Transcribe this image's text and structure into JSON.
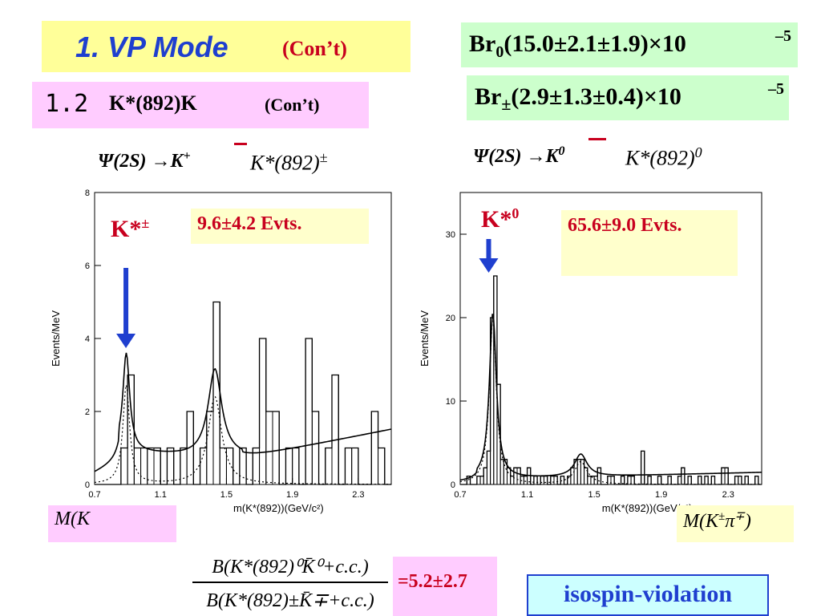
{
  "title": {
    "main": "1. VP Mode",
    "con": "(Con’t)"
  },
  "subtitle": {
    "number": "1.2",
    "text": "K*(892)K",
    "con": "(Con’t)"
  },
  "branching": {
    "br0": {
      "label": "Br",
      "sub": "0",
      "value": "(15.0±2.1±1.9)×10",
      "exp": "–5"
    },
    "brpm": {
      "label": "Br",
      "sub": "±",
      "value": "(2.9±1.3±0.4)×10",
      "exp": "–5"
    }
  },
  "left_panel": {
    "decay": "Ψ(2S) →K",
    "decay_sup": "+",
    "kstar": "K*(892)",
    "kstar_sup": "±",
    "peak_label": "K*",
    "peak_label_sup": "±",
    "events": "9.6±4.2 Evts.",
    "mass_box": "M(K",
    "colors": {
      "arrow": "#1f3fcf",
      "curve": "#000000"
    }
  },
  "right_panel": {
    "decay": "Ψ(2S) →K",
    "decay_sup": "0",
    "kstar": "K*(892)",
    "kstar_sup": "0",
    "peak_label": "K*",
    "peak_label_sup": "0",
    "events": "65.6±9.0 Evts.",
    "mass_box": "M(K",
    "mass_box_sup": "±",
    "mass_box_pi": "π",
    "mass_box_pi_sup": "∓",
    "mass_box_close": ")"
  },
  "ratio": {
    "numerator": "B(K*(892)⁰K̄⁰+c.c.)",
    "denominator": "B(K*(892)±K̄∓+c.c.)",
    "result": "=5.2±2.7"
  },
  "isospin": "isospin-violation",
  "chart_data": [
    {
      "type": "histogram",
      "xlabel": "m(K*(892))(GeV/c²)",
      "ylabel": "Events/MeV",
      "xlim": [
        0.7,
        2.5
      ],
      "ylim": [
        0,
        8
      ],
      "xticks": [
        0.7,
        1.1,
        1.5,
        1.9,
        2.3
      ],
      "yticks": [
        0,
        2,
        4,
        6,
        8
      ],
      "bin_width": 0.04,
      "bins": [
        {
          "x": 0.7,
          "y": 0
        },
        {
          "x": 0.74,
          "y": 0
        },
        {
          "x": 0.78,
          "y": 0
        },
        {
          "x": 0.82,
          "y": 0
        },
        {
          "x": 0.86,
          "y": 1
        },
        {
          "x": 0.9,
          "y": 3
        },
        {
          "x": 0.94,
          "y": 1
        },
        {
          "x": 0.98,
          "y": 1
        },
        {
          "x": 1.02,
          "y": 1
        },
        {
          "x": 1.06,
          "y": 1
        },
        {
          "x": 1.1,
          "y": 0
        },
        {
          "x": 1.14,
          "y": 1
        },
        {
          "x": 1.18,
          "y": 0
        },
        {
          "x": 1.22,
          "y": 1
        },
        {
          "x": 1.26,
          "y": 2
        },
        {
          "x": 1.3,
          "y": 0
        },
        {
          "x": 1.34,
          "y": 1
        },
        {
          "x": 1.38,
          "y": 2
        },
        {
          "x": 1.42,
          "y": 5
        },
        {
          "x": 1.46,
          "y": 1
        },
        {
          "x": 1.5,
          "y": 1
        },
        {
          "x": 1.54,
          "y": 0
        },
        {
          "x": 1.58,
          "y": 1
        },
        {
          "x": 1.62,
          "y": 0
        },
        {
          "x": 1.66,
          "y": 1
        },
        {
          "x": 1.7,
          "y": 4
        },
        {
          "x": 1.74,
          "y": 2
        },
        {
          "x": 1.78,
          "y": 2
        },
        {
          "x": 1.82,
          "y": 0
        },
        {
          "x": 1.86,
          "y": 1
        },
        {
          "x": 1.9,
          "y": 1
        },
        {
          "x": 1.94,
          "y": 0
        },
        {
          "x": 1.98,
          "y": 4
        },
        {
          "x": 2.02,
          "y": 2
        },
        {
          "x": 2.06,
          "y": 0
        },
        {
          "x": 2.1,
          "y": 1
        },
        {
          "x": 2.14,
          "y": 3
        },
        {
          "x": 2.18,
          "y": 0
        },
        {
          "x": 2.22,
          "y": 1
        },
        {
          "x": 2.26,
          "y": 1
        },
        {
          "x": 2.3,
          "y": 0
        },
        {
          "x": 2.34,
          "y": 0
        },
        {
          "x": 2.38,
          "y": 2
        },
        {
          "x": 2.42,
          "y": 1
        },
        {
          "x": 2.46,
          "y": 0
        }
      ],
      "fit_peaks": [
        {
          "mass": 0.892,
          "width": 0.05,
          "height": 2.7
        },
        {
          "mass": 1.43,
          "width": 0.1,
          "height": 2.4
        }
      ],
      "background": {
        "slope": 0.002
      }
    },
    {
      "type": "histogram",
      "xlabel": "m(K*(892))(GeV/c²)",
      "ylabel": "Events/MeV",
      "xlim": [
        0.7,
        2.5
      ],
      "ylim": [
        0,
        35
      ],
      "xticks": [
        0.7,
        1.1,
        1.5,
        1.9,
        2.3
      ],
      "yticks": [
        0,
        10,
        20,
        30
      ],
      "bin_width": 0.02,
      "bins": [
        {
          "x": 0.7,
          "y": 0
        },
        {
          "x": 0.72,
          "y": 0
        },
        {
          "x": 0.74,
          "y": 1
        },
        {
          "x": 0.76,
          "y": 0
        },
        {
          "x": 0.78,
          "y": 0
        },
        {
          "x": 0.8,
          "y": 1
        },
        {
          "x": 0.82,
          "y": 1
        },
        {
          "x": 0.84,
          "y": 2
        },
        {
          "x": 0.86,
          "y": 4
        },
        {
          "x": 0.88,
          "y": 20
        },
        {
          "x": 0.9,
          "y": 25
        },
        {
          "x": 0.92,
          "y": 12
        },
        {
          "x": 0.94,
          "y": 3
        },
        {
          "x": 0.96,
          "y": 3
        },
        {
          "x": 0.98,
          "y": 2
        },
        {
          "x": 1.0,
          "y": 1
        },
        {
          "x": 1.02,
          "y": 2
        },
        {
          "x": 1.04,
          "y": 2
        },
        {
          "x": 1.06,
          "y": 1
        },
        {
          "x": 1.08,
          "y": 1
        },
        {
          "x": 1.1,
          "y": 2
        },
        {
          "x": 1.12,
          "y": 0
        },
        {
          "x": 1.14,
          "y": 1
        },
        {
          "x": 1.16,
          "y": 0
        },
        {
          "x": 1.18,
          "y": 1
        },
        {
          "x": 1.2,
          "y": 1
        },
        {
          "x": 1.22,
          "y": 0
        },
        {
          "x": 1.24,
          "y": 1
        },
        {
          "x": 1.26,
          "y": 1
        },
        {
          "x": 1.28,
          "y": 0
        },
        {
          "x": 1.3,
          "y": 1
        },
        {
          "x": 1.32,
          "y": 0
        },
        {
          "x": 1.34,
          "y": 1
        },
        {
          "x": 1.36,
          "y": 2
        },
        {
          "x": 1.38,
          "y": 3
        },
        {
          "x": 1.4,
          "y": 3
        },
        {
          "x": 1.42,
          "y": 3
        },
        {
          "x": 1.44,
          "y": 2
        },
        {
          "x": 1.46,
          "y": 1
        },
        {
          "x": 1.48,
          "y": 1
        },
        {
          "x": 1.5,
          "y": 1
        },
        {
          "x": 1.52,
          "y": 2
        },
        {
          "x": 1.54,
          "y": 0
        },
        {
          "x": 1.56,
          "y": 0
        },
        {
          "x": 1.58,
          "y": 1
        },
        {
          "x": 1.6,
          "y": 1
        },
        {
          "x": 1.62,
          "y": 0
        },
        {
          "x": 1.64,
          "y": 0
        },
        {
          "x": 1.66,
          "y": 1
        },
        {
          "x": 1.68,
          "y": 0
        },
        {
          "x": 1.7,
          "y": 1
        },
        {
          "x": 1.72,
          "y": 1
        },
        {
          "x": 1.74,
          "y": 0
        },
        {
          "x": 1.76,
          "y": 0
        },
        {
          "x": 1.78,
          "y": 4
        },
        {
          "x": 1.8,
          "y": 0
        },
        {
          "x": 1.82,
          "y": 1
        },
        {
          "x": 1.84,
          "y": 0
        },
        {
          "x": 1.86,
          "y": 0
        },
        {
          "x": 1.88,
          "y": 1
        },
        {
          "x": 1.9,
          "y": 0
        },
        {
          "x": 1.92,
          "y": 0
        },
        {
          "x": 1.94,
          "y": 1
        },
        {
          "x": 1.96,
          "y": 0
        },
        {
          "x": 1.98,
          "y": 0
        },
        {
          "x": 2.0,
          "y": 1
        },
        {
          "x": 2.02,
          "y": 2
        },
        {
          "x": 2.04,
          "y": 0
        },
        {
          "x": 2.06,
          "y": 1
        },
        {
          "x": 2.08,
          "y": 0
        },
        {
          "x": 2.1,
          "y": 0
        },
        {
          "x": 2.12,
          "y": 1
        },
        {
          "x": 2.14,
          "y": 0
        },
        {
          "x": 2.16,
          "y": 1
        },
        {
          "x": 2.18,
          "y": 0
        },
        {
          "x": 2.2,
          "y": 1
        },
        {
          "x": 2.22,
          "y": 0
        },
        {
          "x": 2.24,
          "y": 0
        },
        {
          "x": 2.26,
          "y": 2
        },
        {
          "x": 2.28,
          "y": 2
        },
        {
          "x": 2.3,
          "y": 0
        },
        {
          "x": 2.32,
          "y": 0
        },
        {
          "x": 2.34,
          "y": 1
        },
        {
          "x": 2.36,
          "y": 1
        },
        {
          "x": 2.38,
          "y": 0
        },
        {
          "x": 2.4,
          "y": 1
        },
        {
          "x": 2.42,
          "y": 0
        },
        {
          "x": 2.44,
          "y": 0
        },
        {
          "x": 2.46,
          "y": 1
        },
        {
          "x": 2.48,
          "y": 0
        }
      ],
      "fit_peaks": [
        {
          "mass": 0.895,
          "width": 0.05,
          "height": 20
        },
        {
          "mass": 1.42,
          "width": 0.09,
          "height": 2.7
        }
      ],
      "background": {
        "slope": 0.2
      }
    }
  ]
}
